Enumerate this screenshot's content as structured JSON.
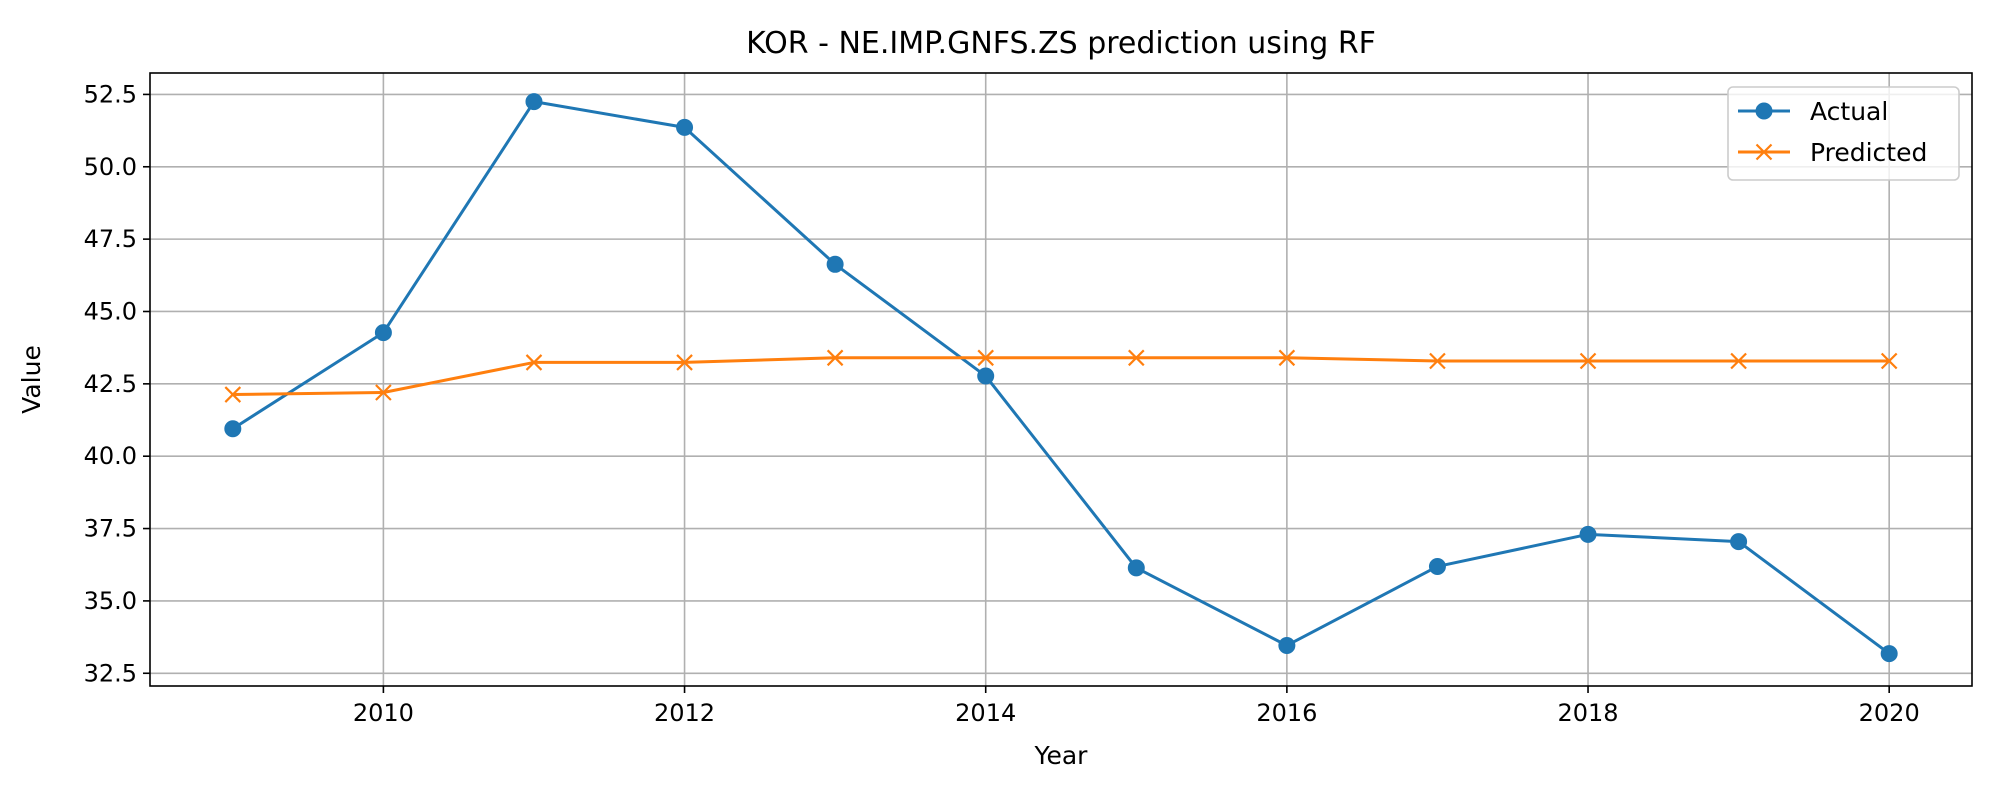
{
  "chart_data": {
    "type": "line",
    "title": "KOR - NE.IMP.GNFS.ZS prediction using RF",
    "xlabel": "Year",
    "ylabel": "Value",
    "x": [
      2009,
      2010,
      2011,
      2012,
      2013,
      2014,
      2015,
      2016,
      2017,
      2018,
      2019,
      2020
    ],
    "xlim": [
      2008.45,
      2020.55
    ],
    "ylim": [
      32.06,
      53.24
    ],
    "x_ticks": [
      2010,
      2012,
      2014,
      2016,
      2018,
      2020
    ],
    "y_ticks": [
      32.5,
      35.0,
      37.5,
      40.0,
      42.5,
      45.0,
      47.5,
      50.0,
      52.5
    ],
    "y_tick_labels": [
      "32.5",
      "35.0",
      "37.5",
      "40.0",
      "42.5",
      "45.0",
      "47.5",
      "50.0",
      "52.5"
    ],
    "grid": true,
    "legend_position": "upper right",
    "series": [
      {
        "name": "Actual",
        "marker": "circle",
        "color": "#1f77b4",
        "values": [
          40.95,
          44.27,
          52.25,
          51.36,
          46.63,
          42.77,
          36.14,
          33.46,
          36.19,
          37.3,
          37.05,
          33.18
        ]
      },
      {
        "name": "Predicted",
        "marker": "x",
        "color": "#ff7f0e",
        "values": [
          42.13,
          42.2,
          43.24,
          43.24,
          43.4,
          43.4,
          43.4,
          43.4,
          43.29,
          43.29,
          43.29,
          43.29
        ]
      }
    ]
  }
}
